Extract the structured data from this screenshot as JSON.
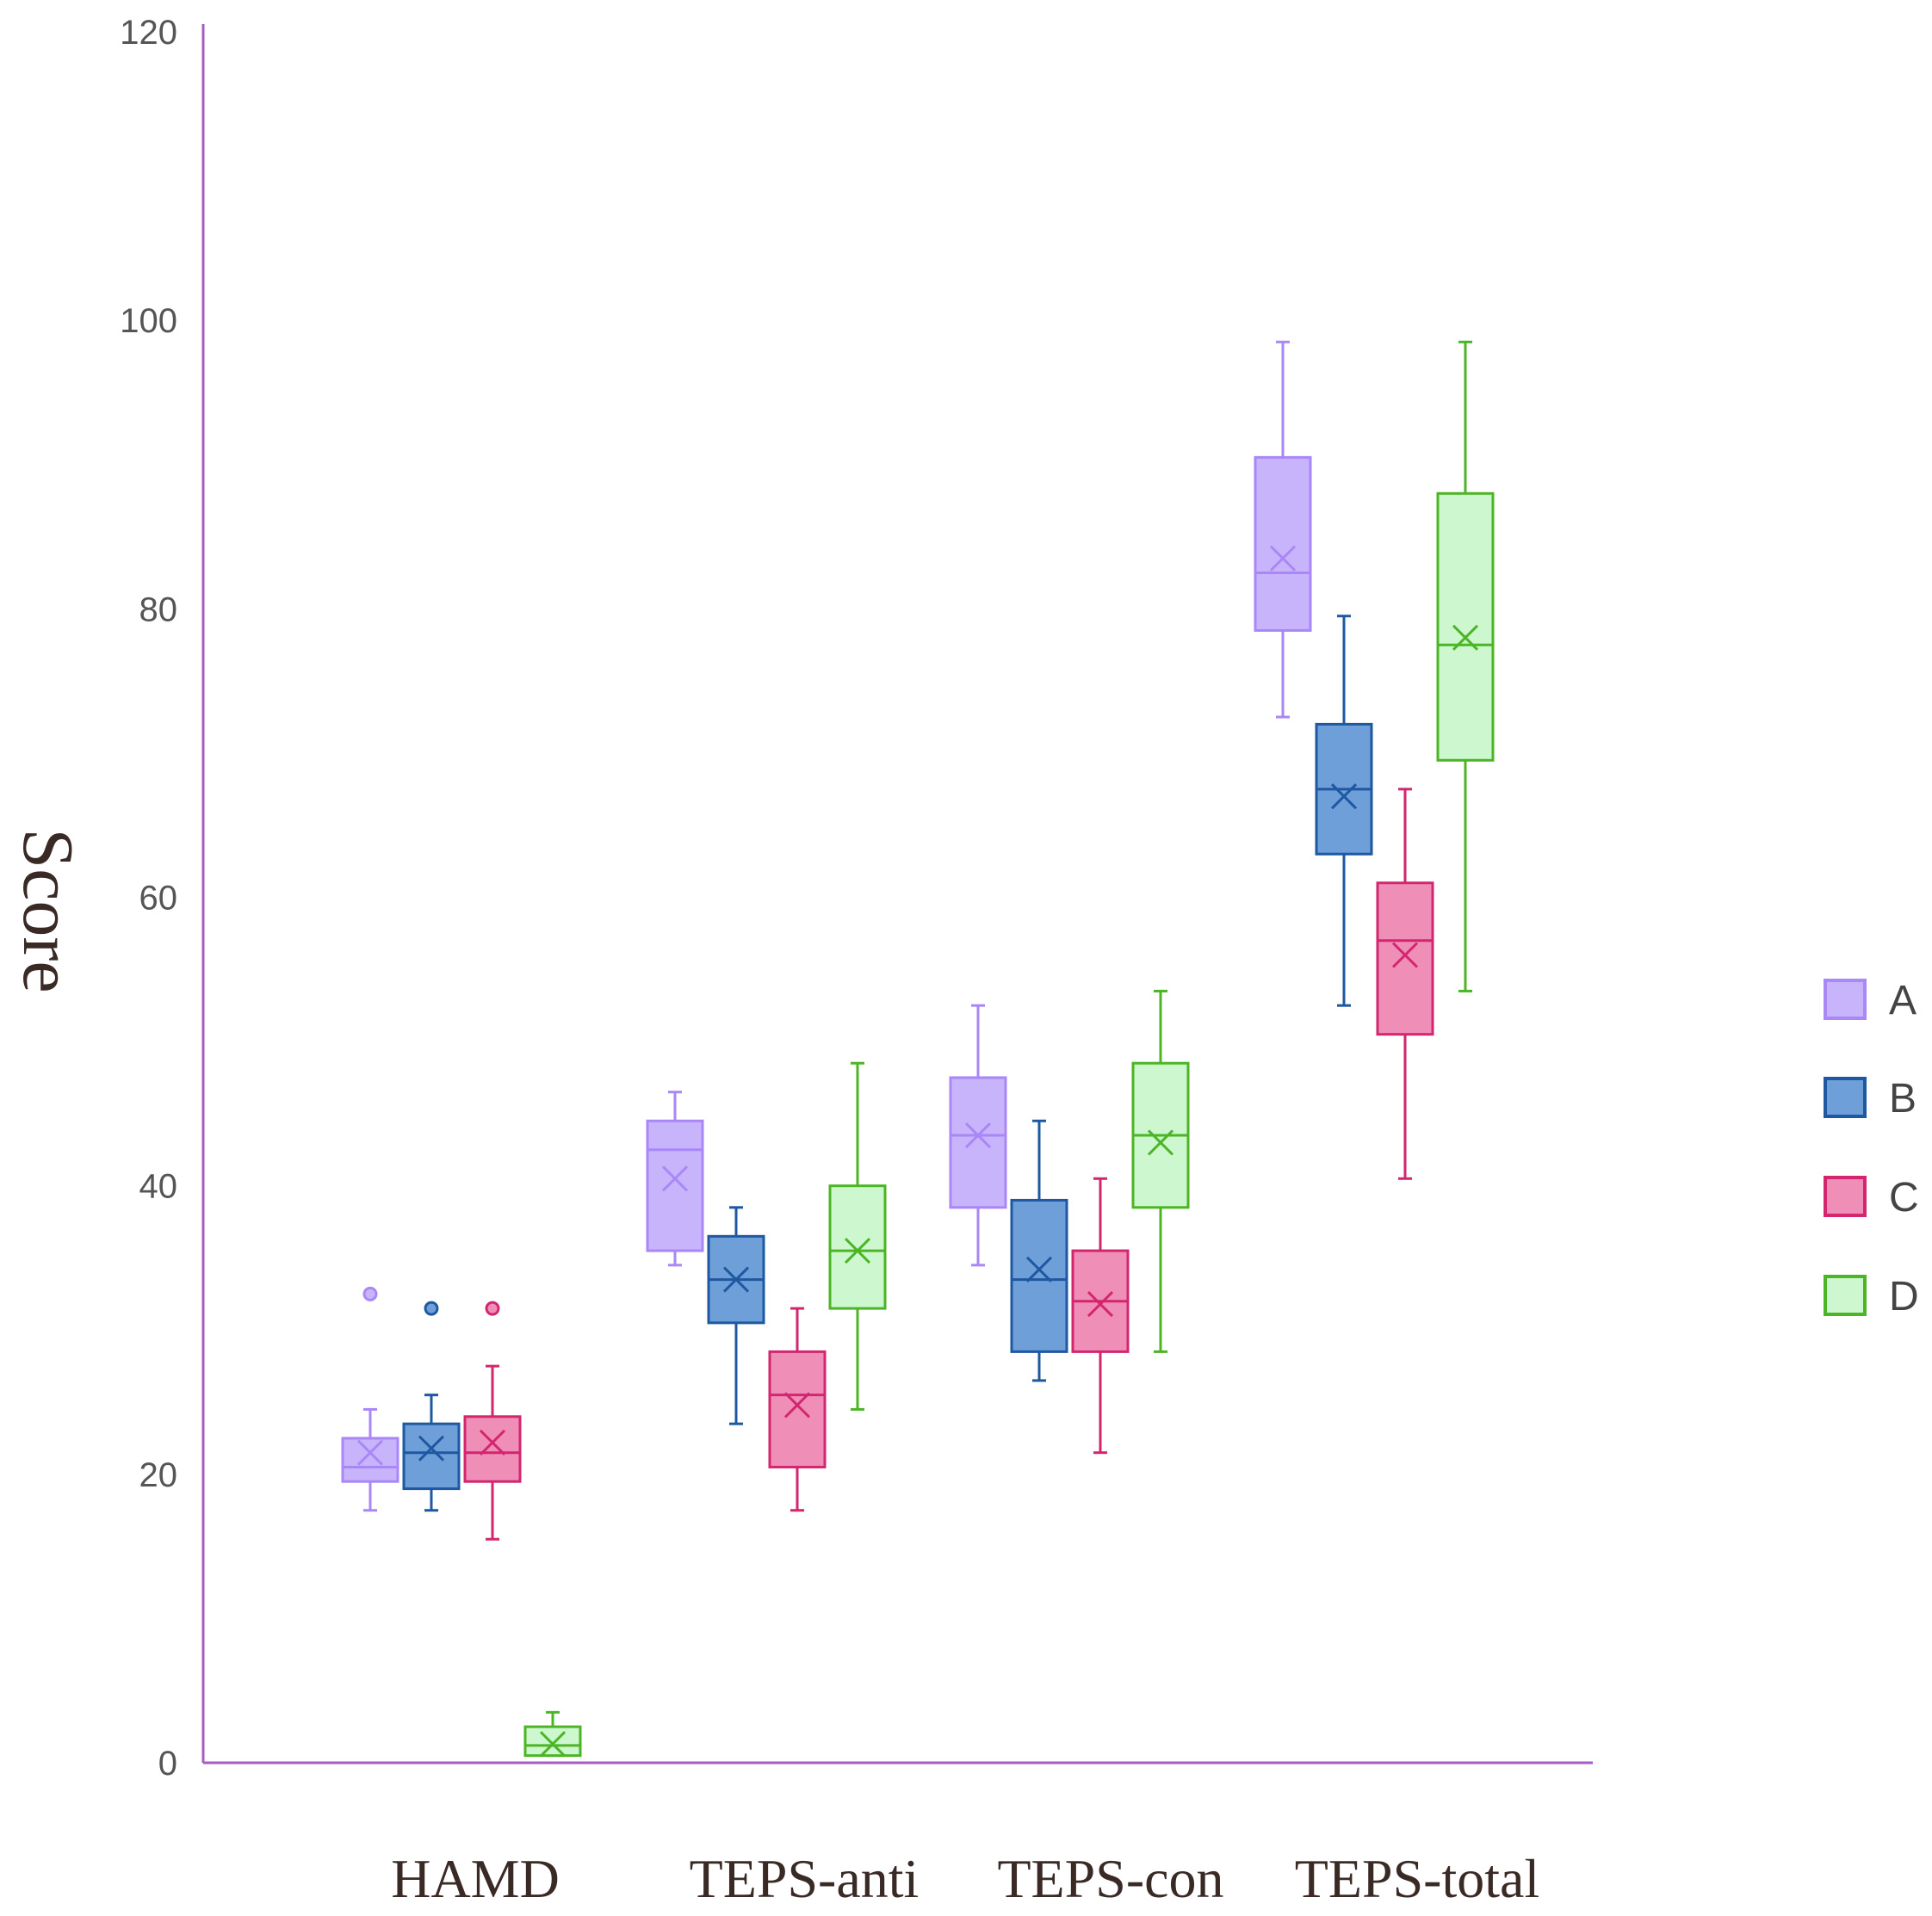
{
  "chart_data": {
    "type": "box",
    "ylabel": "Score",
    "xlabel": "",
    "ylim": [
      0,
      120
    ],
    "yticks": [
      "0",
      "20",
      "40",
      "60",
      "80",
      "100",
      "120"
    ],
    "grid": false,
    "legend_position": "right",
    "categories": [
      "HAMD",
      "TEPS-anti",
      "TEPS-con",
      "TEPS-total"
    ],
    "axis_color": "#a65cc2",
    "series": [
      {
        "name": "A",
        "stroke": "#a987f7",
        "fill": "#c8b4fb",
        "boxes": [
          {
            "whisker_low": 17.5,
            "q1": 19.5,
            "median": 20.5,
            "q3": 22.5,
            "whisker_high": 24.5,
            "mean": 21.5,
            "outliers": [
              32.5
            ]
          },
          {
            "whisker_low": 34.5,
            "q1": 35.5,
            "median": 42.5,
            "q3": 44.5,
            "whisker_high": 46.5,
            "mean": 40.5,
            "outliers": []
          },
          {
            "whisker_low": 34.5,
            "q1": 38.5,
            "median": 43.5,
            "q3": 47.5,
            "whisker_high": 52.5,
            "mean": 43.5,
            "outliers": []
          },
          {
            "whisker_low": 72.5,
            "q1": 78.5,
            "median": 82.5,
            "q3": 90.5,
            "whisker_high": 98.5,
            "mean": 83.5,
            "outliers": []
          }
        ]
      },
      {
        "name": "B",
        "stroke": "#1e58a0",
        "fill": "#6f9fd8",
        "boxes": [
          {
            "whisker_low": 17.5,
            "q1": 19.0,
            "median": 21.5,
            "q3": 23.5,
            "whisker_high": 25.5,
            "mean": 21.8,
            "outliers": [
              31.5
            ]
          },
          {
            "whisker_low": 23.5,
            "q1": 30.5,
            "median": 33.5,
            "q3": 36.5,
            "whisker_high": 38.5,
            "mean": 33.5,
            "outliers": []
          },
          {
            "whisker_low": 26.5,
            "q1": 28.5,
            "median": 33.5,
            "q3": 39.0,
            "whisker_high": 44.5,
            "mean": 34.2,
            "outliers": []
          },
          {
            "whisker_low": 52.5,
            "q1": 63.0,
            "median": 67.5,
            "q3": 72.0,
            "whisker_high": 79.5,
            "mean": 67.0,
            "outliers": []
          }
        ]
      },
      {
        "name": "C",
        "stroke": "#d3266f",
        "fill": "#ef8fb8",
        "boxes": [
          {
            "whisker_low": 15.5,
            "q1": 19.5,
            "median": 21.5,
            "q3": 24.0,
            "whisker_high": 27.5,
            "mean": 22.2,
            "outliers": [
              31.5
            ]
          },
          {
            "whisker_low": 17.5,
            "q1": 20.5,
            "median": 25.5,
            "q3": 28.5,
            "whisker_high": 31.5,
            "mean": 24.8,
            "outliers": []
          },
          {
            "whisker_low": 21.5,
            "q1": 28.5,
            "median": 32.0,
            "q3": 35.5,
            "whisker_high": 40.5,
            "mean": 31.8,
            "outliers": []
          },
          {
            "whisker_low": 40.5,
            "q1": 50.5,
            "median": 57.0,
            "q3": 61.0,
            "whisker_high": 67.5,
            "mean": 56.0,
            "outliers": []
          }
        ]
      },
      {
        "name": "D",
        "stroke": "#4cb526",
        "fill": "#cdf8cf",
        "boxes": [
          {
            "whisker_low": 0.5,
            "q1": 0.5,
            "median": 1.2,
            "q3": 2.5,
            "whisker_high": 3.5,
            "mean": 1.3,
            "outliers": []
          },
          {
            "whisker_low": 24.5,
            "q1": 31.5,
            "median": 35.5,
            "q3": 40.0,
            "whisker_high": 48.5,
            "mean": 35.5,
            "outliers": []
          },
          {
            "whisker_low": 28.5,
            "q1": 38.5,
            "median": 43.5,
            "q3": 48.5,
            "whisker_high": 53.5,
            "mean": 43.0,
            "outliers": []
          },
          {
            "whisker_low": 53.5,
            "q1": 69.5,
            "median": 77.5,
            "q3": 88.0,
            "whisker_high": 98.5,
            "mean": 78.0,
            "outliers": []
          }
        ]
      }
    ]
  }
}
